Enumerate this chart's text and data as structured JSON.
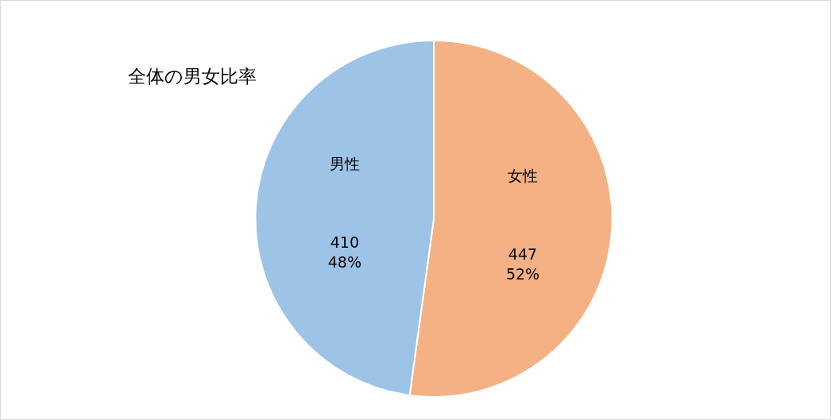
{
  "chart_data": {
    "type": "pie",
    "title": "全体の男女比率",
    "categories": [
      "女性",
      "男性"
    ],
    "values": [
      447,
      410
    ],
    "value_labels": [
      "447\n52%",
      "410\n48%"
    ],
    "colors": [
      "#f4b183",
      "#9dc3e6"
    ],
    "legend": false
  }
}
